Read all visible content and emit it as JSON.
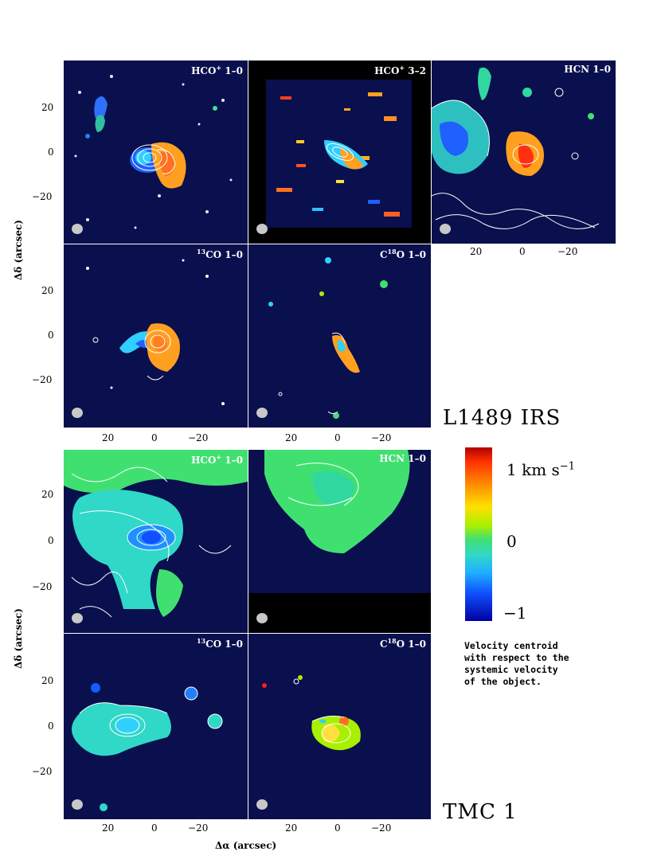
{
  "figure": {
    "l1489": {
      "title": "L1489 IRS",
      "panels": [
        {
          "label_html": "HCO<sup>+</sup> 1–0"
        },
        {
          "label_html": "HCO<sup>+</sup> 3–2"
        },
        {
          "label_html": "HCN 1–0"
        },
        {
          "label_html": "<sup>13</sup>CO 1–0"
        },
        {
          "label_html": "C<sup>18</sup>O 1–0"
        }
      ]
    },
    "tmc1": {
      "title": "TMC 1",
      "panels": [
        {
          "label_html": "HCO<sup>+</sup> 1–0"
        },
        {
          "label_html": "HCN 1–0"
        },
        {
          "label_html": "<sup>13</sup>CO 1–0"
        },
        {
          "label_html": "C<sup>18</sup>O 1–0"
        }
      ]
    },
    "axes": {
      "y_label": "Δδ (arcsec)",
      "x_label": "Δα (arcsec)",
      "y_ticks": [
        "20",
        "0",
        "−20"
      ],
      "x_ticks": [
        "20",
        "0",
        "−20"
      ]
    },
    "colorbar": {
      "top_label": "1 km s",
      "top_label_exp": "−1",
      "mid_label": "0",
      "bottom_label": "−1"
    },
    "caption": [
      "Velocity centroid",
      "with respect to the",
      "systemic velocity",
      "of the object."
    ],
    "colors": {
      "background": "#0a0f4d",
      "contour": "#ffffff",
      "beam": "#c8c8c8"
    }
  }
}
